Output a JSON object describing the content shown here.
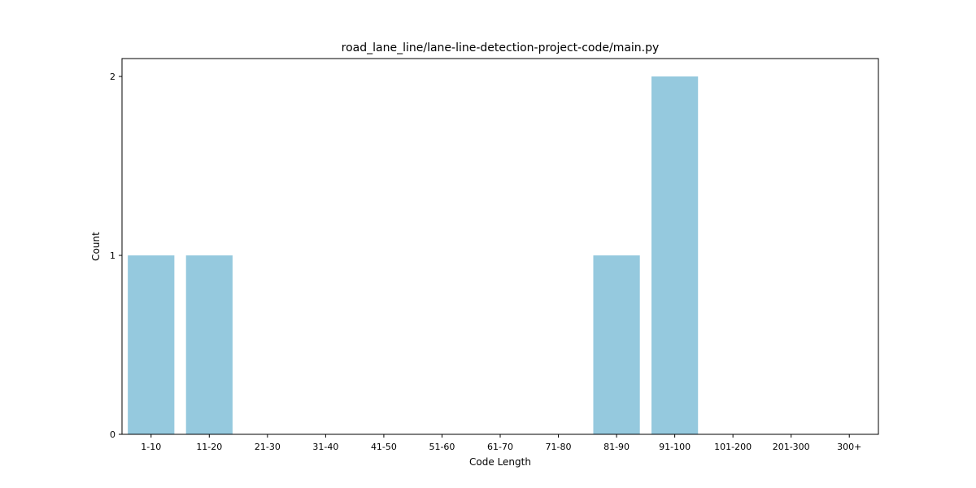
{
  "chart_data": {
    "type": "bar",
    "title": "road_lane_line/lane-line-detection-project-code/main.py",
    "xlabel": "Code Length",
    "ylabel": "Count",
    "categories": [
      "1-10",
      "11-20",
      "21-30",
      "31-40",
      "41-50",
      "51-60",
      "61-70",
      "71-80",
      "81-90",
      "91-100",
      "101-200",
      "201-300",
      "300+"
    ],
    "values": [
      1,
      1,
      0,
      0,
      0,
      0,
      0,
      0,
      1,
      2,
      0,
      0,
      0
    ],
    "ylim": [
      0,
      2.1
    ],
    "yticks": [
      0,
      1,
      2
    ],
    "grid": false,
    "legend": "none",
    "bar_color": "#95c9de"
  }
}
